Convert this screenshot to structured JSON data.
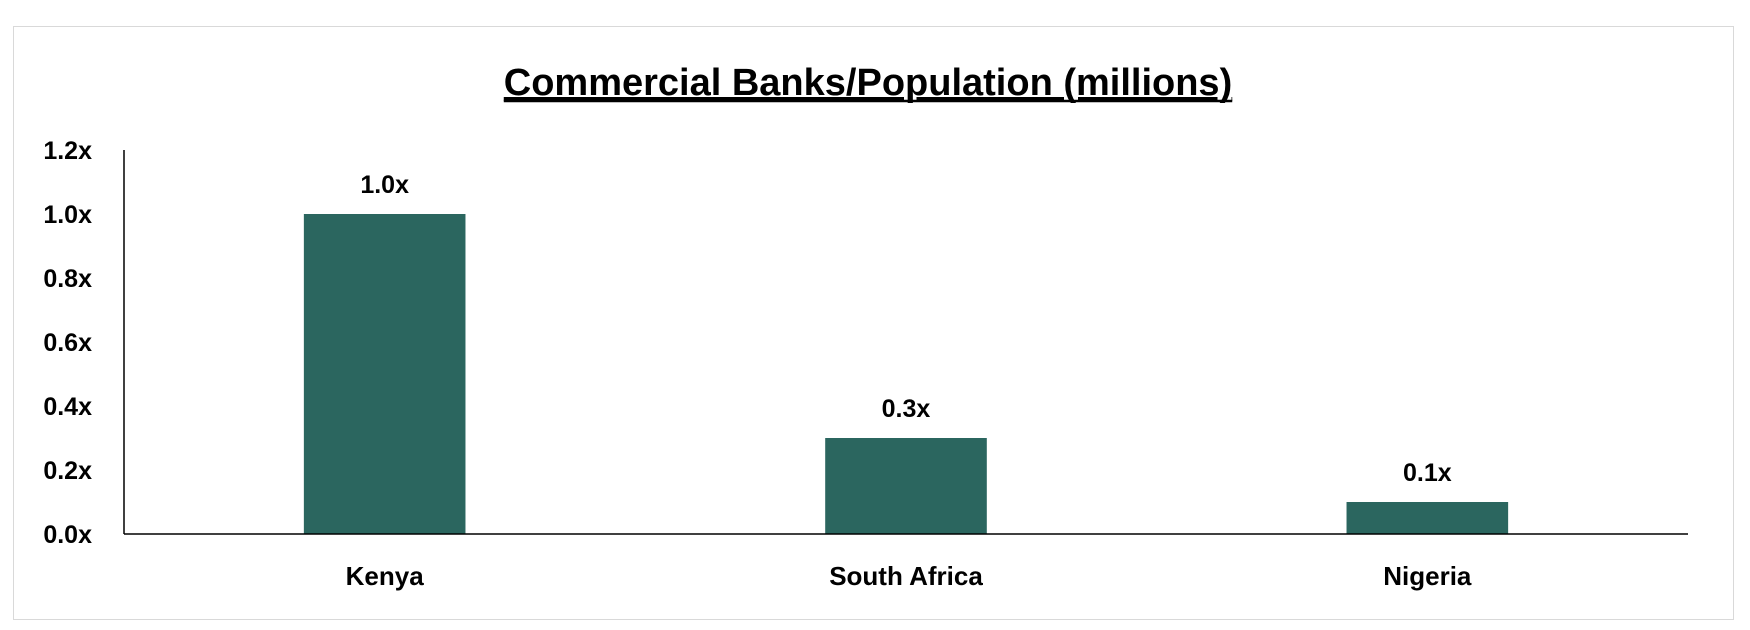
{
  "chart_data": {
    "type": "bar",
    "title": "Commercial Banks/Population (millions)",
    "xlabel": "",
    "ylabel": "",
    "categories": [
      "Kenya",
      "South Africa",
      "Nigeria"
    ],
    "values": [
      1.0,
      0.3,
      0.1
    ],
    "data_labels": [
      "1.0x",
      "0.3x",
      "0.1x"
    ],
    "ylim": [
      0,
      1.2
    ],
    "yticks": [
      0.0,
      0.2,
      0.4,
      0.6,
      0.8,
      1.0,
      1.2
    ],
    "ytick_labels": [
      "0.0x",
      "0.2x",
      "0.4x",
      "0.6x",
      "0.8x",
      "1.0x",
      "1.2x"
    ],
    "grid": false,
    "legend": "none",
    "bar_color": "#2b665f"
  }
}
